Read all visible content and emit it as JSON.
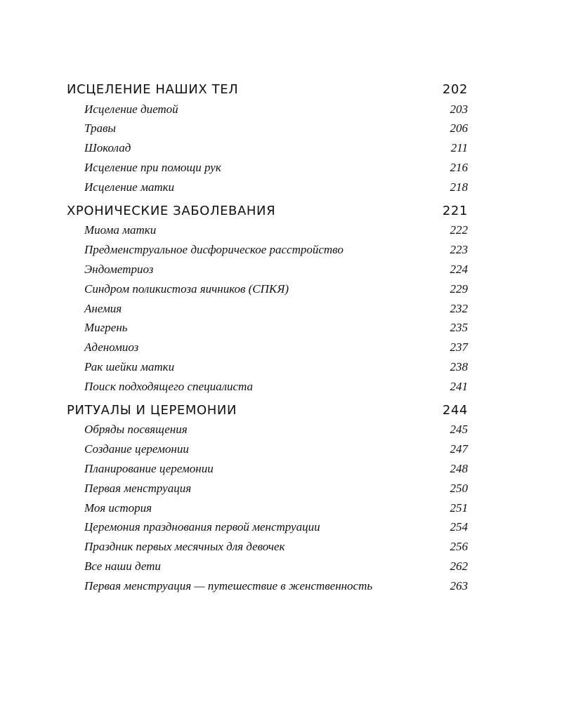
{
  "toc": {
    "sections": [
      {
        "title": "ИСЦЕЛЕНИЕ НАШИХ ТЕЛ",
        "page": "202",
        "items": [
          {
            "title": "Исцеление диетой",
            "page": "203"
          },
          {
            "title": "Травы",
            "page": "206"
          },
          {
            "title": "Шоколад",
            "page": "211"
          },
          {
            "title": "Исцеление при помощи рук",
            "page": "216"
          },
          {
            "title": "Исцеление матки",
            "page": "218"
          }
        ]
      },
      {
        "title": "ХРОНИЧЕСКИЕ ЗАБОЛЕВАНИЯ",
        "page": "221",
        "items": [
          {
            "title": "Миома матки",
            "page": "222"
          },
          {
            "title": "Предменструальное дисфорическое расстройство",
            "page": "223"
          },
          {
            "title": "Эндометриоз",
            "page": "224"
          },
          {
            "title": "Синдром поликистоза яичников (СПКЯ)",
            "page": "229"
          },
          {
            "title": "Анемия",
            "page": "232"
          },
          {
            "title": "Мигрень",
            "page": "235"
          },
          {
            "title": "Аденомиоз",
            "page": "237"
          },
          {
            "title": "Рак шейки матки",
            "page": "238"
          },
          {
            "title": "Поиск подходящего специалиста",
            "page": "241"
          }
        ]
      },
      {
        "title": "РИТУАЛЫ И ЦЕРЕМОНИИ",
        "page": "244",
        "items": [
          {
            "title": "Обряды посвящения",
            "page": "245"
          },
          {
            "title": "Создание церемонии",
            "page": "247"
          },
          {
            "title": "Планирование церемонии",
            "page": "248"
          },
          {
            "title": "Первая менструация",
            "page": "250"
          },
          {
            "title": "Моя история",
            "page": "251"
          },
          {
            "title": "Церемония празднования первой менструации",
            "page": "254"
          },
          {
            "title": "Праздник первых месячных для девочек",
            "page": "256"
          },
          {
            "title": "Все наши дети",
            "page": "262"
          },
          {
            "title": "Первая менструация — путешествие в женственность",
            "page": "263"
          }
        ]
      }
    ]
  }
}
